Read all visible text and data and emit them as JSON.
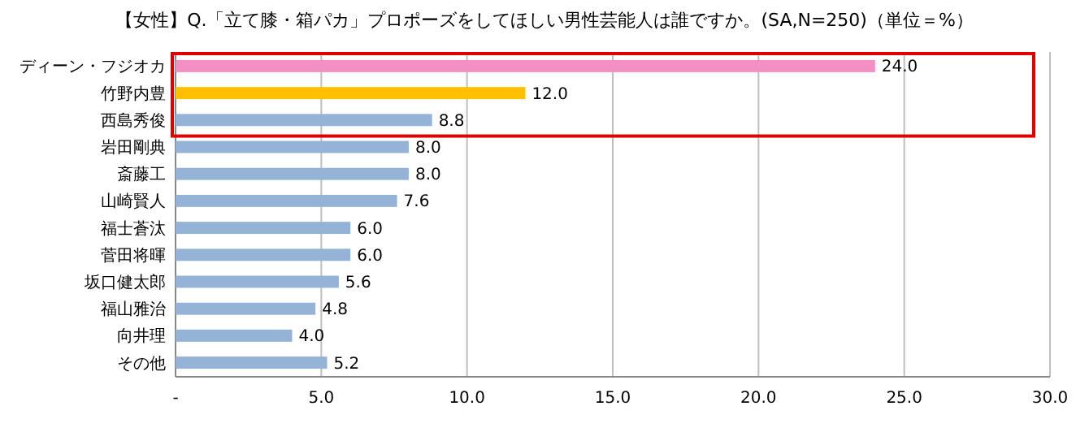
{
  "chart_data": {
    "type": "bar",
    "orientation": "horizontal",
    "title": "【女性】Q.「立て膝・箱パカ」プロポーズをしてほしい男性芸能人は誰ですか。(SA,N=250)（単位＝%）",
    "categories": [
      "ディーン・フジオカ",
      "竹野内豊",
      "西島秀俊",
      "岩田剛典",
      "斎藤工",
      "山崎賢人",
      "福士蒼汰",
      "菅田将暉",
      "坂口健太郎",
      "福山雅治",
      "向井理",
      "その他"
    ],
    "values": [
      24.0,
      12.0,
      8.8,
      8.0,
      8.0,
      7.6,
      6.0,
      6.0,
      5.6,
      4.8,
      4.0,
      5.2
    ],
    "value_labels": [
      "24.0",
      "12.0",
      "8.8",
      "8.0",
      "8.0",
      "7.6",
      "6.0",
      "6.0",
      "5.6",
      "4.8",
      "4.0",
      "5.2"
    ],
    "colors": [
      "#f48fc4",
      "#ffc000",
      "#95b3d7",
      "#95b3d7",
      "#95b3d7",
      "#95b3d7",
      "#95b3d7",
      "#95b3d7",
      "#95b3d7",
      "#95b3d7",
      "#95b3d7",
      "#95b3d7"
    ],
    "xlim": [
      0,
      30
    ],
    "xticks": [
      {
        "value": 0,
        "label": "-"
      },
      {
        "value": 5,
        "label": "5.0"
      },
      {
        "value": 10,
        "label": "10.0"
      },
      {
        "value": 15,
        "label": "15.0"
      },
      {
        "value": 20,
        "label": "20.0"
      },
      {
        "value": 25,
        "label": "25.0"
      },
      {
        "value": 30,
        "label": "30.0"
      }
    ],
    "grid": "x"
  }
}
